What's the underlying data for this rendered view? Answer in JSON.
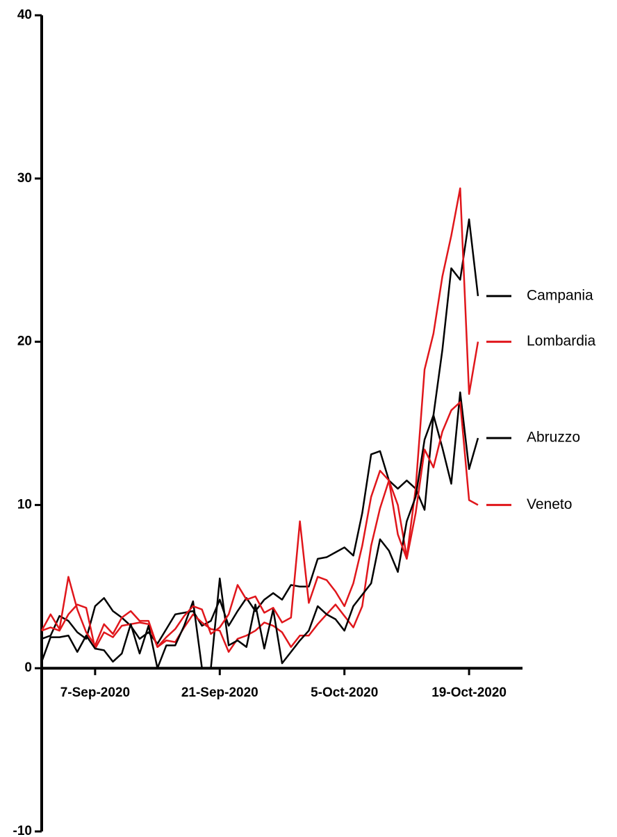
{
  "chart_data": {
    "type": "line",
    "x": [
      "2020-09-01",
      "2020-09-02",
      "2020-09-03",
      "2020-09-04",
      "2020-09-05",
      "2020-09-06",
      "2020-09-07",
      "2020-09-08",
      "2020-09-09",
      "2020-09-10",
      "2020-09-11",
      "2020-09-12",
      "2020-09-13",
      "2020-09-14",
      "2020-09-15",
      "2020-09-16",
      "2020-09-17",
      "2020-09-18",
      "2020-09-19",
      "2020-09-20",
      "2020-09-21",
      "2020-09-22",
      "2020-09-23",
      "2020-09-24",
      "2020-09-25",
      "2020-09-26",
      "2020-09-27",
      "2020-09-28",
      "2020-09-29",
      "2020-09-30",
      "2020-10-01",
      "2020-10-02",
      "2020-10-03",
      "2020-10-04",
      "2020-10-05",
      "2020-10-06",
      "2020-10-07",
      "2020-10-08",
      "2020-10-09",
      "2020-10-10",
      "2020-10-11",
      "2020-10-12",
      "2020-10-13",
      "2020-10-14",
      "2020-10-15",
      "2020-10-16",
      "2020-10-17",
      "2020-10-18",
      "2020-10-19",
      "2020-10-20"
    ],
    "series": [
      {
        "name": "Campania",
        "color": "#000000",
        "values": [
          1.8,
          2.0,
          3.2,
          2.9,
          2.2,
          1.8,
          3.8,
          4.3,
          3.5,
          3.1,
          2.6,
          1.8,
          2.2,
          1.5,
          2.4,
          3.3,
          3.4,
          3.5,
          2.6,
          2.9,
          4.2,
          2.6,
          3.5,
          4.3,
          3.5,
          4.2,
          4.6,
          4.2,
          5.1,
          5.0,
          5.0,
          6.7,
          6.8,
          7.1,
          7.4,
          6.9,
          9.5,
          13.1,
          13.3,
          11.5,
          11.0,
          11.5,
          11.0,
          9.7,
          15.5,
          19.5,
          24.5,
          23.8,
          27.5,
          22.8
        ]
      },
      {
        "name": "Lombardia",
        "color": "#e0161b",
        "values": [
          2.3,
          2.5,
          2.3,
          3.3,
          3.9,
          3.7,
          1.2,
          2.2,
          1.9,
          2.6,
          2.7,
          2.8,
          2.7,
          1.3,
          1.7,
          1.6,
          2.5,
          3.3,
          2.8,
          2.4,
          2.3,
          1.0,
          1.8,
          2.0,
          2.3,
          2.8,
          2.6,
          2.2,
          1.3,
          2.0,
          2.0,
          2.7,
          3.3,
          3.9,
          3.2,
          2.5,
          3.8,
          7.5,
          9.8,
          11.5,
          10.0,
          6.8,
          11.0,
          18.3,
          20.5,
          24.0,
          26.5,
          29.4,
          16.8,
          20.0
        ]
      },
      {
        "name": "Abruzzo",
        "color": "#000000",
        "values": [
          0.4,
          1.9,
          1.9,
          2.0,
          1.0,
          2.0,
          1.2,
          1.1,
          0.4,
          0.9,
          2.7,
          0.9,
          2.6,
          0.0,
          1.4,
          1.4,
          2.6,
          4.1,
          0.0,
          0.0,
          5.5,
          1.4,
          1.7,
          1.3,
          3.9,
          1.2,
          3.6,
          0.3,
          1.0,
          1.7,
          2.3,
          3.8,
          3.3,
          3.0,
          2.3,
          3.8,
          4.5,
          5.2,
          7.9,
          7.2,
          5.9,
          9.0,
          10.5,
          14.0,
          15.5,
          13.5,
          11.3,
          16.9,
          12.2,
          14.1
        ]
      },
      {
        "name": "Veneto",
        "color": "#e0161b",
        "values": [
          2.3,
          3.3,
          2.4,
          5.6,
          3.6,
          2.2,
          1.4,
          2.7,
          2.1,
          3.1,
          3.5,
          2.9,
          2.9,
          1.3,
          1.9,
          2.4,
          3.2,
          3.8,
          3.6,
          2.1,
          2.5,
          3.3,
          5.1,
          4.2,
          4.4,
          3.4,
          3.7,
          2.8,
          3.1,
          9.0,
          4.0,
          5.6,
          5.4,
          4.7,
          3.8,
          5.2,
          7.5,
          10.5,
          12.1,
          11.5,
          8.2,
          6.7,
          9.5,
          13.4,
          12.3,
          14.5,
          15.8,
          16.3,
          10.3,
          10.0
        ]
      }
    ],
    "xlim": [
      "2020-09-01",
      "2020-10-25"
    ],
    "xticks": [
      {
        "value": "2020-09-07",
        "label": "7-Sep-2020"
      },
      {
        "value": "2020-09-21",
        "label": "21-Sep-2020"
      },
      {
        "value": "2020-10-05",
        "label": "5-Oct-2020"
      },
      {
        "value": "2020-10-19",
        "label": "19-Oct-2020"
      }
    ],
    "ylim": [
      -10,
      40
    ],
    "yticks": [
      -10,
      0,
      10,
      20,
      30,
      40
    ]
  }
}
